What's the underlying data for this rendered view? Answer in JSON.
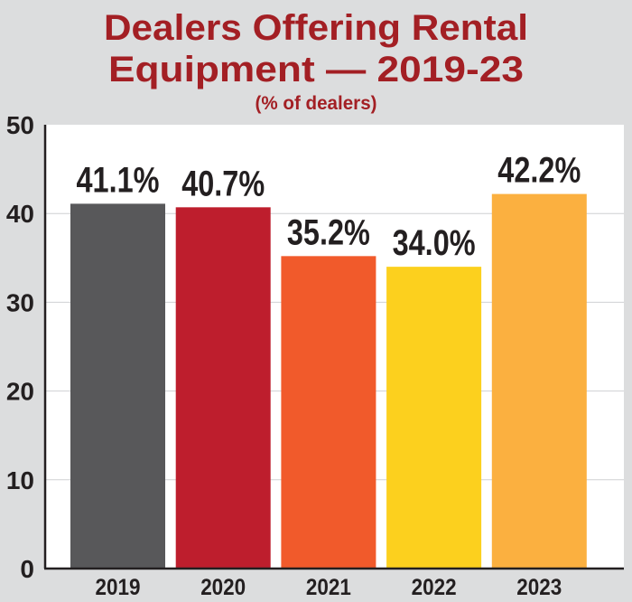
{
  "chart_data": {
    "type": "bar",
    "title_line1": "Dealers Offering Rental",
    "title_line2": "Equipment — 2019-23",
    "subtitle": "(% of dealers)",
    "categories": [
      "2019",
      "2020",
      "2021",
      "2022",
      "2023"
    ],
    "values": [
      41.1,
      40.7,
      35.2,
      34.0,
      42.2
    ],
    "data_labels": [
      "41.1%",
      "40.7%",
      "35.2%",
      "34.0%",
      "42.2%"
    ],
    "colors": [
      "#58585a",
      "#be1e2d",
      "#f15a2b",
      "#fcd01e",
      "#fbb040"
    ],
    "ylim": [
      0,
      50
    ],
    "yticks": [
      "0",
      "10",
      "20",
      "30",
      "40",
      "50"
    ],
    "grid": true,
    "title_color": "#a31f24",
    "background_color": "#dcddde"
  }
}
